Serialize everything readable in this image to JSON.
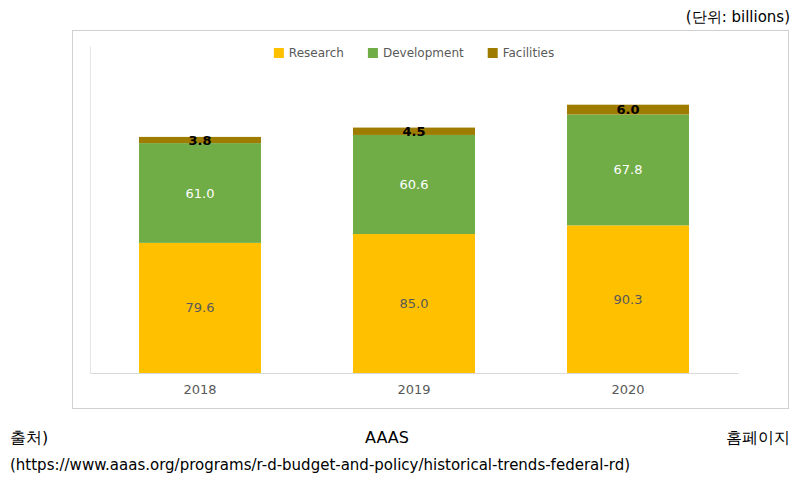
{
  "chart_data": {
    "type": "bar",
    "stacked": true,
    "data_labels": true,
    "legend": "top",
    "tick_labels": "x",
    "categories": [
      "2018",
      "2019",
      "2020"
    ],
    "ylim": [
      0,
      200
    ],
    "series": [
      {
        "name": "Research",
        "color": "#ffc000",
        "values": [
          79.6,
          85.0,
          90.3
        ],
        "value_labels": [
          "79.6",
          "85.0",
          "90.3"
        ]
      },
      {
        "name": "Development",
        "color": "#70ad47",
        "values": [
          61.0,
          60.6,
          67.8
        ],
        "value_labels": [
          "61.0",
          "60.6",
          "67.8"
        ]
      },
      {
        "name": "Facilities",
        "color": "#9e7c00",
        "values": [
          3.8,
          4.5,
          6.0
        ],
        "value_labels": [
          "3.8",
          "4.5",
          "6.0"
        ]
      }
    ],
    "annotations": [
      "(단위: billions)",
      "출처)",
      "AAAS",
      "홈페이지",
      "(https://www.aaas.org/programs/r-d-budget-and-policy/historical-trends-federal-rd)"
    ]
  }
}
